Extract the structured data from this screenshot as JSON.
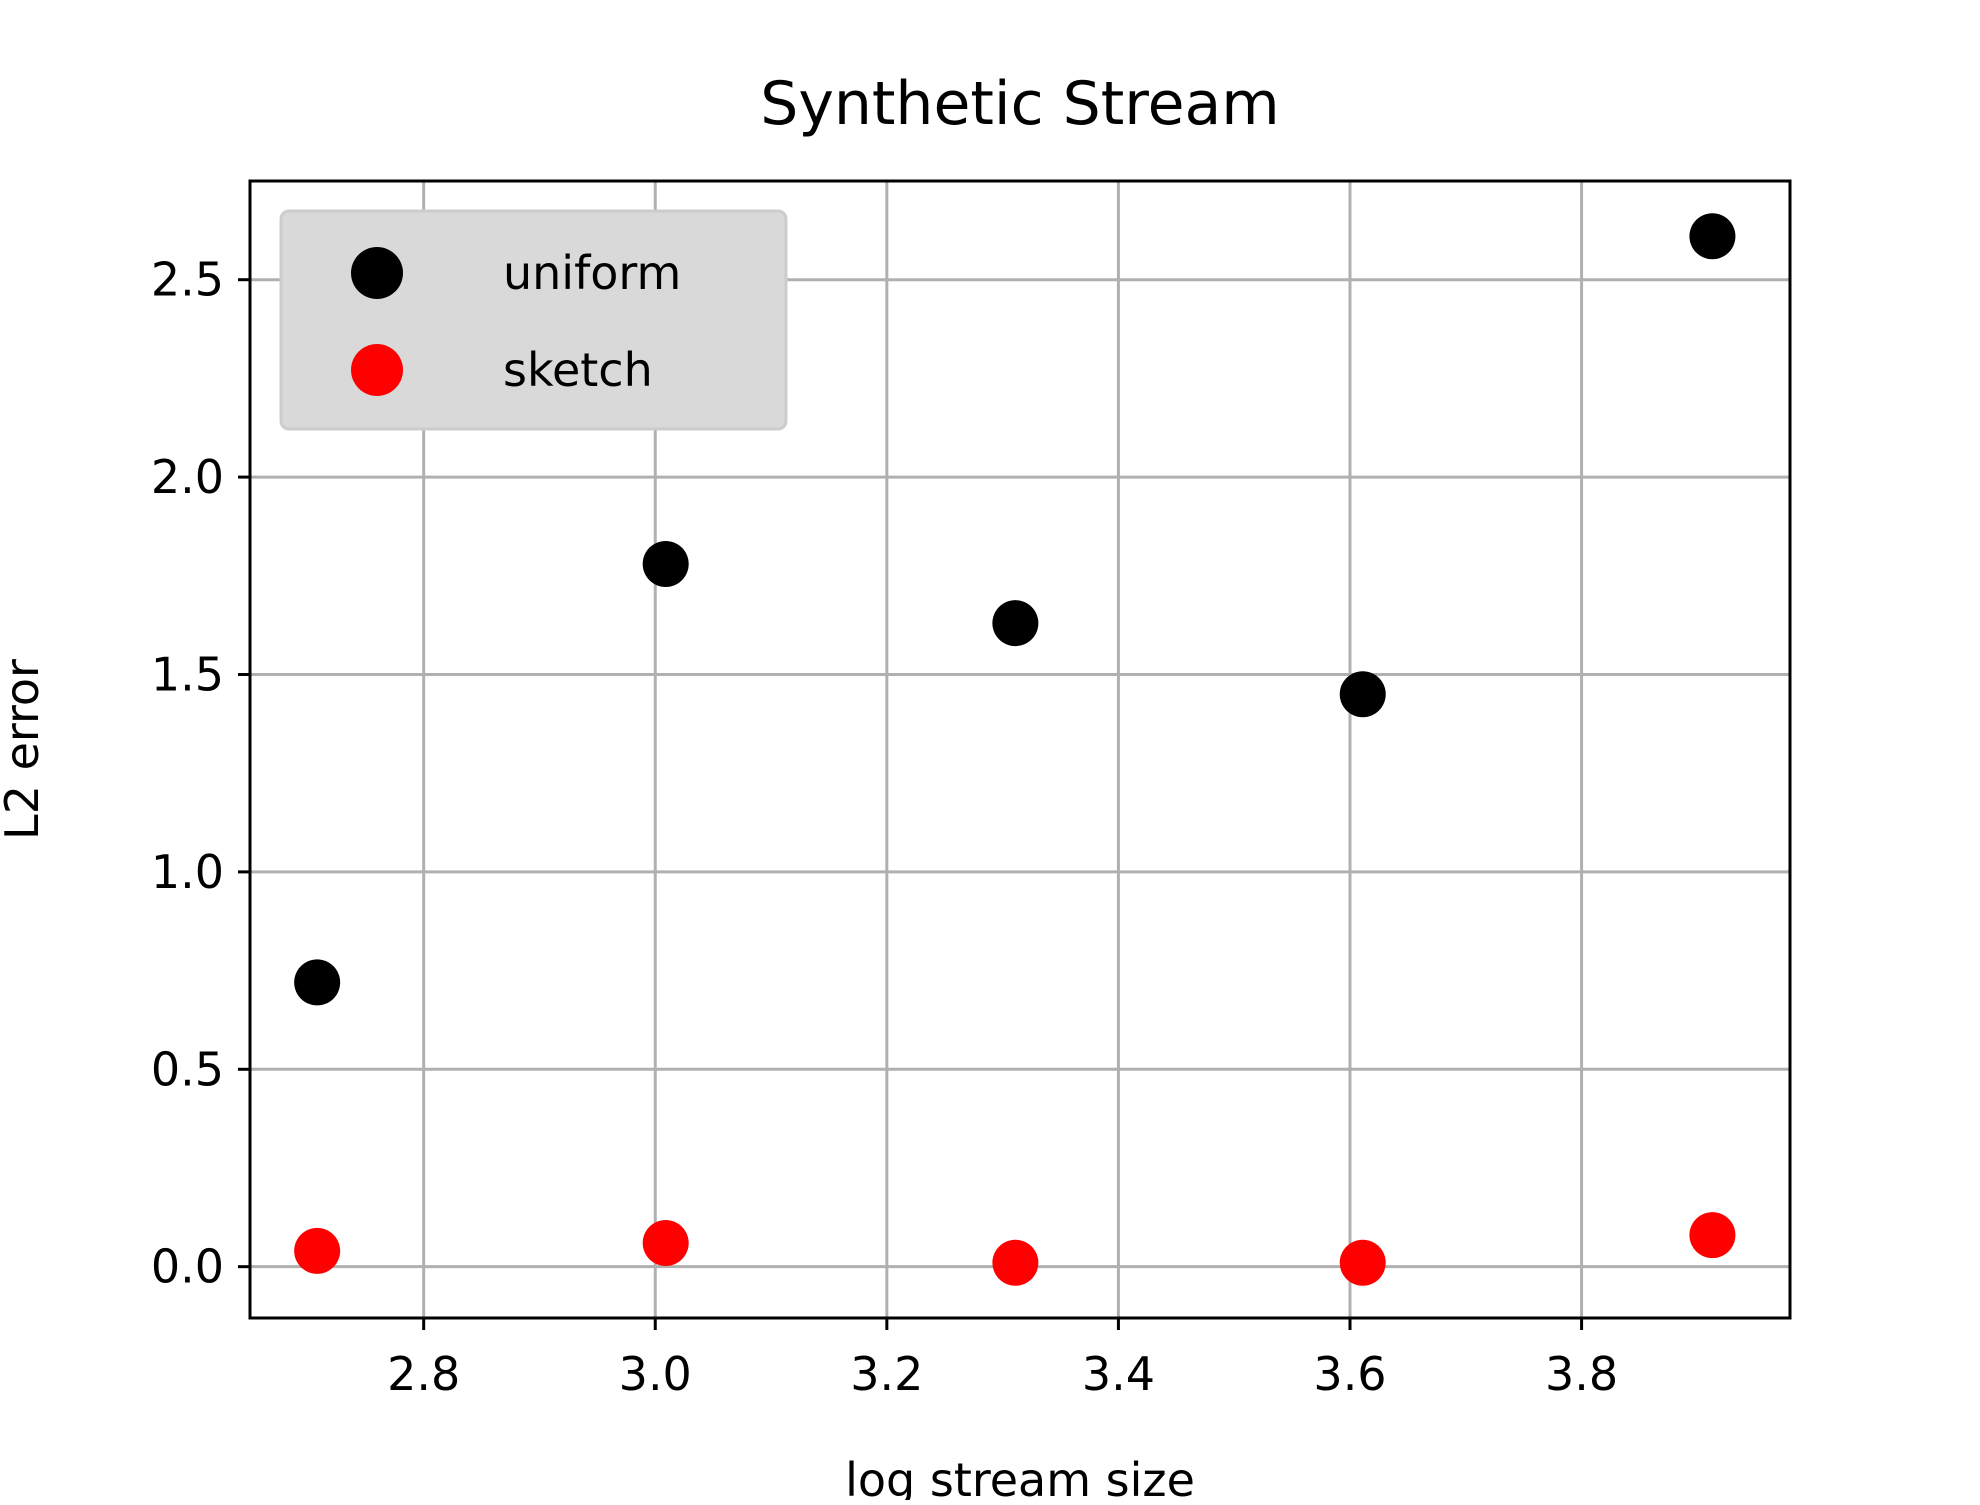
{
  "chart_data": {
    "type": "scatter",
    "title": "Synthetic Stream",
    "xlabel": "log stream size",
    "ylabel": "L2 error",
    "xlim": [
      2.65,
      3.98
    ],
    "ylim": [
      -0.13,
      2.75
    ],
    "xticks": [
      2.8,
      3.0,
      3.2,
      3.4,
      3.6,
      3.8
    ],
    "xtick_labels": [
      "2.8",
      "3.0",
      "3.2",
      "3.4",
      "3.6",
      "3.8"
    ],
    "yticks": [
      0.0,
      0.5,
      1.0,
      1.5,
      2.0,
      2.5
    ],
    "ytick_labels": [
      "0.0",
      "0.5",
      "1.0",
      "1.5",
      "2.0",
      "2.5"
    ],
    "grid": true,
    "legend_position": "top-left",
    "series": [
      {
        "name": "uniform",
        "color": "#000000",
        "x": [
          2.708,
          3.009,
          3.311,
          3.611,
          3.913
        ],
        "y": [
          0.72,
          1.78,
          1.63,
          1.45,
          2.61
        ]
      },
      {
        "name": "sketch",
        "color": "#ff0000",
        "x": [
          2.708,
          3.009,
          3.311,
          3.611,
          3.913
        ],
        "y": [
          0.04,
          0.06,
          0.01,
          0.01,
          0.08
        ]
      }
    ]
  }
}
